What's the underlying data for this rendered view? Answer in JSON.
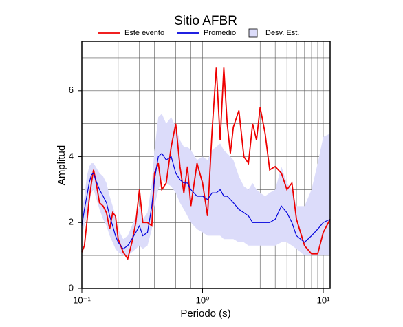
{
  "chart_data": {
    "type": "line",
    "title": "Sitio AFBR",
    "xlabel": "Periodo (s)",
    "ylabel": "Amplitud",
    "xscale": "log",
    "grid": true,
    "legend": "top",
    "xlim": [
      0.1,
      11.4
    ],
    "ylim": [
      0,
      7.5
    ],
    "xticks": [
      {
        "value": 0.1,
        "label": "10⁻¹"
      },
      {
        "value": 1,
        "label": "10⁰"
      },
      {
        "value": 10,
        "label": "10¹"
      }
    ],
    "xminor": [
      0.2,
      0.3,
      0.4,
      0.5,
      0.6,
      0.7,
      0.8,
      0.9,
      2,
      3,
      4,
      5,
      6,
      7,
      8,
      9
    ],
    "yticks": [
      0,
      2,
      4,
      6
    ],
    "yminor": [
      1,
      3,
      5,
      7
    ],
    "x": [
      0.1,
      0.105,
      0.11,
      0.115,
      0.12,
      0.125,
      0.13,
      0.14,
      0.15,
      0.16,
      0.17,
      0.18,
      0.19,
      0.2,
      0.22,
      0.24,
      0.26,
      0.28,
      0.3,
      0.32,
      0.35,
      0.38,
      0.4,
      0.43,
      0.46,
      0.5,
      0.55,
      0.6,
      0.65,
      0.7,
      0.75,
      0.8,
      0.9,
      1.0,
      1.1,
      1.2,
      1.3,
      1.4,
      1.5,
      1.6,
      1.7,
      1.8,
      2.0,
      2.2,
      2.4,
      2.6,
      2.8,
      3.0,
      3.3,
      3.6,
      4.0,
      4.5,
      5.0,
      5.5,
      6.0,
      7.0,
      8.0,
      9.0,
      10,
      11.4
    ],
    "band": {
      "name": "Desv. Est.",
      "color": "#dcdcfa",
      "lower": [
        1.6,
        1.9,
        2.2,
        2.6,
        2.9,
        3.0,
        2.8,
        2.4,
        2.1,
        1.9,
        1.6,
        1.4,
        1.2,
        1.1,
        1.0,
        1.0,
        1.1,
        1.2,
        1.3,
        1.2,
        1.3,
        1.8,
        2.5,
        3.0,
        3.3,
        3.2,
        3.1,
        2.9,
        2.6,
        2.4,
        2.2,
        2.0,
        1.8,
        1.7,
        1.6,
        1.6,
        1.6,
        1.6,
        1.5,
        1.5,
        1.5,
        1.5,
        1.4,
        1.4,
        1.3,
        1.3,
        1.3,
        1.3,
        1.3,
        1.3,
        1.3,
        1.4,
        1.4,
        1.3,
        1.2,
        1.0,
        1.0,
        1.0,
        1.0,
        1.0
      ],
      "upper": [
        2.3,
        2.8,
        3.4,
        3.7,
        3.8,
        3.8,
        3.7,
        3.5,
        3.4,
        3.2,
        2.8,
        2.5,
        2.2,
        1.8,
        1.5,
        1.6,
        1.9,
        2.2,
        2.5,
        2.1,
        2.3,
        3.2,
        4.2,
        5.2,
        5.3,
        5.0,
        5.2,
        4.9,
        4.5,
        4.3,
        4.3,
        4.2,
        3.9,
        4.0,
        3.9,
        4.2,
        4.3,
        4.4,
        4.2,
        4.1,
        4.0,
        3.9,
        3.4,
        3.1,
        3.0,
        3.2,
        3.0,
        2.9,
        2.8,
        2.9,
        3.0,
        3.7,
        3.2,
        3.0,
        2.5,
        2.5,
        3.0,
        3.8,
        4.6,
        4.7
      ]
    },
    "series": [
      {
        "name": "Este evento",
        "color": "#ee0000",
        "values": [
          1.1,
          1.3,
          2.0,
          2.7,
          3.2,
          3.6,
          3.3,
          2.6,
          2.5,
          2.3,
          1.8,
          2.3,
          2.2,
          1.5,
          1.1,
          0.9,
          1.4,
          2.0,
          3.0,
          2.0,
          2.0,
          1.9,
          3.5,
          3.8,
          3.0,
          3.2,
          4.3,
          5.0,
          3.7,
          2.9,
          3.7,
          2.5,
          3.8,
          3.2,
          2.2,
          4.8,
          6.7,
          4.5,
          6.7,
          5.0,
          4.1,
          4.9,
          5.4,
          4.0,
          3.8,
          5.0,
          4.5,
          5.5,
          4.7,
          3.6,
          3.7,
          3.5,
          3.0,
          3.2,
          2.1,
          1.3,
          1.05,
          1.05,
          1.7,
          2.1
        ]
      },
      {
        "name": "Promedio",
        "color": "#0000dd",
        "values": [
          1.9,
          2.4,
          2.8,
          3.2,
          3.45,
          3.5,
          3.3,
          3.0,
          2.8,
          2.6,
          2.2,
          1.9,
          1.6,
          1.4,
          1.2,
          1.3,
          1.5,
          1.7,
          1.9,
          1.6,
          1.7,
          2.5,
          3.3,
          4.0,
          4.1,
          3.9,
          4.0,
          3.5,
          3.3,
          3.2,
          3.2,
          3.0,
          2.8,
          2.8,
          2.7,
          2.9,
          2.9,
          3.0,
          2.8,
          2.8,
          2.7,
          2.6,
          2.4,
          2.3,
          2.2,
          2.0,
          2.0,
          2.0,
          2.0,
          2.0,
          2.1,
          2.5,
          2.3,
          2.0,
          1.6,
          1.4,
          1.6,
          1.8,
          2.0,
          2.1
        ]
      }
    ]
  }
}
